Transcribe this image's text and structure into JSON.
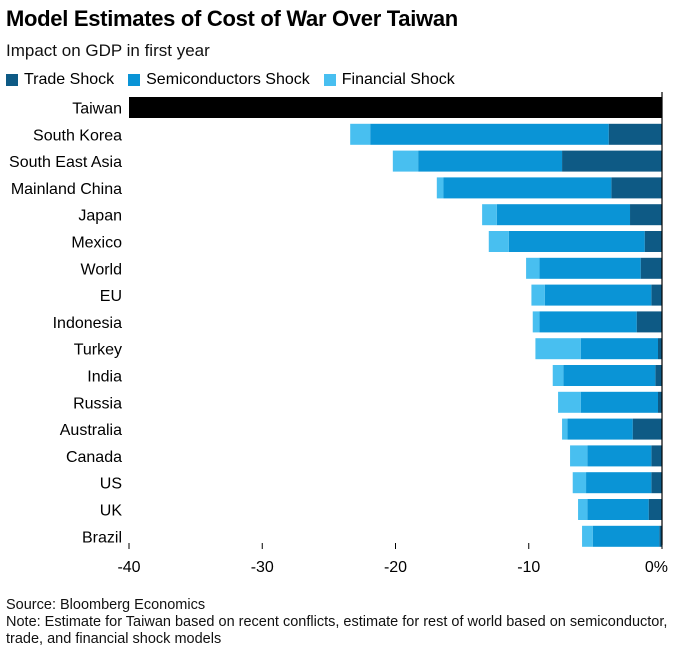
{
  "header": {
    "title": "Model Estimates of Cost of War Over Taiwan",
    "subtitle": "Impact on GDP in first year"
  },
  "legend": [
    {
      "label": "Trade Shock",
      "color": "#0e5a85"
    },
    {
      "label": "Semiconductors Shock",
      "color": "#0a94d6"
    },
    {
      "label": "Financial Shock",
      "color": "#48bff0"
    }
  ],
  "footer": {
    "source": "Source: Bloomberg Economics",
    "note": "Note: Estimate for Taiwan based on recent conflicts, estimate for rest of world based on semiconductor, trade, and financial shock models"
  },
  "chart_data": {
    "type": "bar",
    "orientation": "horizontal",
    "stacked": true,
    "xlim": [
      -40,
      0
    ],
    "x_ticks": [
      -40,
      -30,
      -20,
      -10,
      0
    ],
    "x_tick_labels": [
      "-40",
      "-30",
      "-20",
      "-10",
      "0%"
    ],
    "categories": [
      "Taiwan",
      "South Korea",
      "South East Asia",
      "Mainland China",
      "Japan",
      "Mexico",
      "World",
      "EU",
      "Indonesia",
      "Turkey",
      "India",
      "Russia",
      "Australia",
      "Canada",
      "US",
      "UK",
      "Brazil"
    ],
    "total_series": {
      "name": "",
      "color": "#000000",
      "values": [
        -40,
        null,
        null,
        null,
        null,
        null,
        null,
        null,
        null,
        null,
        null,
        null,
        null,
        null,
        null,
        null,
        null
      ]
    },
    "series": [
      {
        "name": "Trade Shock",
        "color": "#0e5a85",
        "values": [
          null,
          -4.0,
          -7.5,
          -3.8,
          -2.4,
          -1.3,
          -1.6,
          -0.8,
          -1.9,
          -0.3,
          -0.5,
          -0.3,
          -2.2,
          -0.8,
          -0.8,
          -1.0,
          -0.2
        ]
      },
      {
        "name": "Semiconductors Shock",
        "color": "#0a94d6",
        "values": [
          null,
          -17.9,
          -10.8,
          -12.6,
          -10.0,
          -10.2,
          -7.6,
          -8.0,
          -7.3,
          -5.8,
          -6.9,
          -5.8,
          -4.9,
          -4.8,
          -4.9,
          -4.6,
          -5.0
        ]
      },
      {
        "name": "Financial Shock",
        "color": "#48bff0",
        "values": [
          null,
          -1.5,
          -1.9,
          -0.5,
          -1.1,
          -1.5,
          -1.0,
          -1.0,
          -0.5,
          -3.4,
          -0.8,
          -1.7,
          -0.4,
          -1.3,
          -1.0,
          -0.7,
          -0.8
        ]
      }
    ]
  }
}
